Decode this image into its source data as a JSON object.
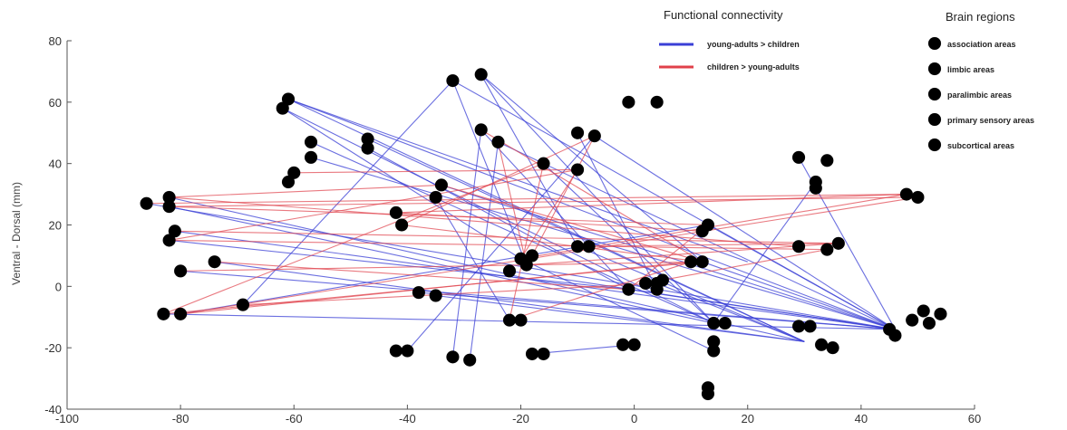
{
  "chart_data": {
    "type": "scatter",
    "ylabel": "Ventral - Dorsal (mm)",
    "xlim": [
      -100,
      60
    ],
    "ylim": [
      -40,
      80
    ],
    "xticks": [
      "-100",
      "-80",
      "-60",
      "-40",
      "-20",
      "0",
      "20",
      "40",
      "60"
    ],
    "yticks": [
      "-40",
      "-20",
      "0",
      "20",
      "40",
      "60",
      "80"
    ],
    "connectivity_legend": {
      "title": "Functional connectivity",
      "entries": [
        {
          "label": "young-adults > children",
          "color": "#3a3fd6"
        },
        {
          "label": "children > young-adults",
          "color": "#e0404a"
        }
      ]
    },
    "regions_legend": {
      "title": "Brain regions",
      "entries": [
        {
          "label": "association areas",
          "color": "#a9c4c4"
        },
        {
          "label": "limbic areas",
          "color": "#2b4a7a"
        },
        {
          "label": "paralimbic areas",
          "color": "#b8863a"
        },
        {
          "label": "primary sensory areas",
          "color": "#6a1e5a"
        },
        {
          "label": "subcortical areas",
          "color": "#2e9a78"
        }
      ]
    },
    "series": [
      {
        "region": "association areas",
        "points": [
          [
            -86,
            27
          ],
          [
            -82,
            29
          ],
          [
            -82,
            26
          ],
          [
            -81,
            18
          ],
          [
            -82,
            15
          ],
          [
            -83,
            -9
          ],
          [
            -80,
            -9
          ],
          [
            -69,
            -6
          ],
          [
            -61,
            61
          ],
          [
            -62,
            58
          ],
          [
            -60,
            37
          ],
          [
            -61,
            34
          ],
          [
            -57,
            47
          ],
          [
            -57,
            42
          ],
          [
            -47,
            48
          ],
          [
            -47,
            45
          ],
          [
            -34,
            33
          ],
          [
            -35,
            29
          ],
          [
            -38,
            -2
          ],
          [
            -35,
            -3
          ],
          [
            -40,
            -21
          ],
          [
            -42,
            -21
          ],
          [
            -32,
            67
          ],
          [
            -27,
            69
          ],
          [
            -32,
            -23
          ],
          [
            -29,
            -24
          ],
          [
            -1,
            60
          ],
          [
            4,
            60
          ],
          [
            -10,
            13
          ],
          [
            -8,
            13
          ],
          [
            -22,
            5
          ],
          [
            13,
            20
          ],
          [
            12,
            18
          ],
          [
            29,
            42
          ],
          [
            34,
            41
          ],
          [
            32,
            34
          ],
          [
            32,
            32
          ],
          [
            29,
            13
          ],
          [
            48,
            30
          ],
          [
            50,
            29
          ]
        ]
      },
      {
        "region": "limbic areas",
        "points": [
          [
            -22,
            -11
          ],
          [
            -20,
            -11
          ],
          [
            -2,
            -19
          ],
          [
            0,
            -19
          ],
          [
            14,
            -12
          ],
          [
            16,
            -12
          ]
        ]
      },
      {
        "region": "paralimbic areas",
        "points": [
          [
            -42,
            24
          ],
          [
            -41,
            20
          ],
          [
            -16,
            40
          ],
          [
            -10,
            38
          ],
          [
            -18,
            -22
          ],
          [
            -16,
            -22
          ],
          [
            5,
            2
          ],
          [
            4,
            -1
          ],
          [
            14,
            -18
          ],
          [
            14,
            -21
          ],
          [
            13,
            -33
          ],
          [
            13,
            -35
          ],
          [
            29,
            -13
          ],
          [
            31,
            -13
          ],
          [
            33,
            -19
          ],
          [
            35,
            -20
          ],
          [
            34,
            12
          ],
          [
            36,
            14
          ],
          [
            45,
            -14
          ],
          [
            46,
            -16
          ],
          [
            49,
            -11
          ],
          [
            51,
            -8
          ],
          [
            52,
            -12
          ],
          [
            54,
            -9
          ]
        ]
      },
      {
        "region": "primary sensory areas",
        "points": [
          [
            -80,
            5
          ],
          [
            -74,
            8
          ],
          [
            -27,
            51
          ],
          [
            -24,
            47
          ],
          [
            -20,
            9
          ],
          [
            -18,
            10
          ],
          [
            -10,
            50
          ],
          [
            -7,
            49
          ]
        ]
      },
      {
        "region": "subcortical areas",
        "points": [
          [
            -19,
            7
          ],
          [
            -1,
            -1
          ],
          [
            2,
            1
          ],
          [
            4,
            1
          ],
          [
            10,
            8
          ],
          [
            12,
            8
          ]
        ]
      }
    ],
    "connections": {
      "young-adults > children": [
        [
          [
            -61,
            61
          ],
          [
            46,
            -14
          ]
        ],
        [
          [
            -61,
            61
          ],
          [
            30,
            -18
          ]
        ],
        [
          [
            -62,
            58
          ],
          [
            14,
            -12
          ]
        ],
        [
          [
            -61,
            61
          ],
          [
            20,
            8
          ]
        ],
        [
          [
            -62,
            58
          ],
          [
            -20,
            9
          ]
        ],
        [
          [
            -57,
            47
          ],
          [
            14,
            -12
          ]
        ],
        [
          [
            -57,
            42
          ],
          [
            46,
            -14
          ]
        ],
        [
          [
            -47,
            48
          ],
          [
            30,
            -18
          ]
        ],
        [
          [
            -47,
            45
          ],
          [
            -1,
            -1
          ]
        ],
        [
          [
            -32,
            67
          ],
          [
            46,
            -14
          ]
        ],
        [
          [
            -32,
            67
          ],
          [
            -19,
            7
          ]
        ],
        [
          [
            -27,
            69
          ],
          [
            14,
            -12
          ]
        ],
        [
          [
            -27,
            69
          ],
          [
            12,
            8
          ]
        ],
        [
          [
            -27,
            69
          ],
          [
            -10,
            13
          ]
        ],
        [
          [
            -34,
            33
          ],
          [
            46,
            -14
          ]
        ],
        [
          [
            -35,
            29
          ],
          [
            -22,
            -11
          ]
        ],
        [
          [
            -86,
            27
          ],
          [
            46,
            -14
          ]
        ],
        [
          [
            -82,
            29
          ],
          [
            30,
            -18
          ]
        ],
        [
          [
            -82,
            26
          ],
          [
            14,
            -12
          ]
        ],
        [
          [
            -81,
            18
          ],
          [
            46,
            -14
          ]
        ],
        [
          [
            -82,
            15
          ],
          [
            -1,
            -1
          ]
        ],
        [
          [
            -80,
            5
          ],
          [
            46,
            -14
          ]
        ],
        [
          [
            -74,
            8
          ],
          [
            30,
            -18
          ]
        ],
        [
          [
            -69,
            -6
          ],
          [
            -32,
            67
          ]
        ],
        [
          [
            -83,
            -9
          ],
          [
            46,
            -14
          ]
        ],
        [
          [
            -80,
            -9
          ],
          [
            13,
            20
          ]
        ],
        [
          [
            -38,
            -2
          ],
          [
            46,
            -14
          ]
        ],
        [
          [
            -35,
            -3
          ],
          [
            30,
            -18
          ]
        ],
        [
          [
            -40,
            -21
          ],
          [
            -7,
            49
          ]
        ],
        [
          [
            -32,
            -23
          ],
          [
            -27,
            51
          ]
        ],
        [
          [
            -29,
            -24
          ],
          [
            -24,
            47
          ]
        ],
        [
          [
            -18,
            -22
          ],
          [
            0,
            -19
          ]
        ],
        [
          [
            -10,
            50
          ],
          [
            4,
            -1
          ]
        ],
        [
          [
            -7,
            49
          ],
          [
            46,
            -14
          ]
        ],
        [
          [
            29,
            42
          ],
          [
            46,
            -14
          ]
        ],
        [
          [
            32,
            34
          ],
          [
            14,
            -12
          ]
        ],
        [
          [
            -22,
            5
          ],
          [
            46,
            -14
          ]
        ],
        [
          [
            -20,
            9
          ],
          [
            14,
            -21
          ]
        ],
        [
          [
            -10,
            13
          ],
          [
            30,
            -18
          ]
        ],
        [
          [
            -1,
            -1
          ],
          [
            46,
            -14
          ]
        ],
        [
          [
            4,
            1
          ],
          [
            30,
            -18
          ]
        ],
        [
          [
            12,
            8
          ],
          [
            46,
            -14
          ]
        ],
        [
          [
            13,
            20
          ],
          [
            46,
            -14
          ]
        ],
        [
          [
            -16,
            40
          ],
          [
            14,
            -12
          ]
        ],
        [
          [
            -24,
            47
          ],
          [
            46,
            -14
          ]
        ],
        [
          [
            -27,
            51
          ],
          [
            -1,
            -1
          ]
        ]
      ],
      "children > young-adults": [
        [
          [
            -86,
            27
          ],
          [
            48,
            30
          ]
        ],
        [
          [
            -82,
            29
          ],
          [
            -34,
            33
          ]
        ],
        [
          [
            -82,
            26
          ],
          [
            50,
            29
          ]
        ],
        [
          [
            -82,
            26
          ],
          [
            13,
            20
          ]
        ],
        [
          [
            -82,
            29
          ],
          [
            29,
            13
          ]
        ],
        [
          [
            -81,
            18
          ],
          [
            36,
            14
          ]
        ],
        [
          [
            -82,
            15
          ],
          [
            34,
            12
          ]
        ],
        [
          [
            -82,
            15
          ],
          [
            -10,
            38
          ]
        ],
        [
          [
            -80,
            5
          ],
          [
            12,
            8
          ]
        ],
        [
          [
            -74,
            8
          ],
          [
            -1,
            -1
          ]
        ],
        [
          [
            -83,
            -9
          ],
          [
            12,
            8
          ]
        ],
        [
          [
            -80,
            -9
          ],
          [
            10,
            8
          ]
        ],
        [
          [
            -83,
            -9
          ],
          [
            -16,
            40
          ]
        ],
        [
          [
            -69,
            -6
          ],
          [
            4,
            1
          ]
        ],
        [
          [
            -80,
            -9
          ],
          [
            50,
            29
          ]
        ],
        [
          [
            -42,
            24
          ],
          [
            48,
            30
          ]
        ],
        [
          [
            -41,
            20
          ],
          [
            -7,
            49
          ]
        ],
        [
          [
            -42,
            24
          ],
          [
            12,
            18
          ]
        ],
        [
          [
            -34,
            33
          ],
          [
            12,
            8
          ]
        ],
        [
          [
            -16,
            40
          ],
          [
            -22,
            -11
          ]
        ],
        [
          [
            -10,
            38
          ],
          [
            -20,
            9
          ]
        ],
        [
          [
            -7,
            49
          ],
          [
            -18,
            10
          ]
        ],
        [
          [
            -24,
            47
          ],
          [
            -19,
            7
          ]
        ],
        [
          [
            -22,
            -11
          ],
          [
            10,
            8
          ]
        ],
        [
          [
            -20,
            9
          ],
          [
            48,
            30
          ]
        ],
        [
          [
            -19,
            7
          ],
          [
            36,
            14
          ]
        ],
        [
          [
            -1,
            -1
          ],
          [
            13,
            20
          ]
        ],
        [
          [
            2,
            1
          ],
          [
            34,
            12
          ]
        ],
        [
          [
            -27,
            51
          ],
          [
            12,
            8
          ]
        ],
        [
          [
            -10,
            13
          ],
          [
            36,
            14
          ]
        ],
        [
          [
            -60,
            37
          ],
          [
            -10,
            38
          ]
        ],
        [
          [
            -41,
            20
          ],
          [
            12,
            8
          ]
        ]
      ]
    }
  }
}
